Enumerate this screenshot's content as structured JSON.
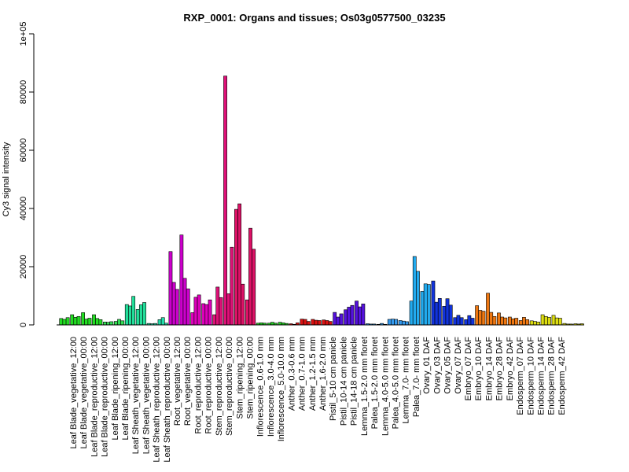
{
  "chart_data": {
    "type": "bar",
    "title": "RXP_0001: Organs and tissues; Os03g0577500_03235",
    "xlabel": "",
    "ylabel": "Cy3 signal intensity",
    "ylim": [
      0,
      100000
    ],
    "yticks": [
      0,
      20000,
      40000,
      60000,
      80000,
      100000
    ],
    "ytick_labels": [
      "0",
      "20000",
      "40000",
      "60000",
      "80000",
      "1e+05"
    ],
    "grid": false,
    "legend": "none",
    "categories": [
      "Leaf Blade_vegetative_12:00",
      "Leaf Blade_vegetative_00:00",
      "Leaf Blade_reproductive_12:00",
      "Leaf Blade_reproductive_00:00",
      "Leaf Blade_ripening_12:00",
      "Leaf Blade_ripening_00:00",
      "Leaf Sheath_vegetative_12:00",
      "Leaf Sheath_vegetative_00:00",
      "Leaf Sheath_reproductive_12:00",
      "Leaf Sheath_reproductive_00:00",
      "Root_vegetative_12:00",
      "Root_vegetative_00:00",
      "Root_reproductive_12:00",
      "Root_reproductive_00:00",
      "Stem_reproductive_12:00",
      "Stem_reproductive_00:00",
      "Stem_ripening_12:00",
      "Stem_ripening_00:00",
      "Inflorescence_0.6-1.0 mm",
      "Inflorescence_3.0-4.0 mm",
      "Inflorescence_5.0-10.0 mm",
      "Anther_0.3-0.6 mm",
      "Anther_0.7-1.0 mm",
      "Anther_1.2-1.5 mm",
      "Anther_1.6-2.0 mm",
      "Pistil_5-10 cm panicle",
      "Pistil_10-14 cm panicle",
      "Pistil_14-18 cm panicle",
      "Lemma_1.5-2.0 mm floret",
      "Palea_1.5-2.0 mm floret",
      "Lemma_4.0-5.0 mm floret",
      "Palea_4.0-5.0 mm floret",
      "Lemma_7.0- mm floret",
      "Palea_7.0- mm floret",
      "Ovary_01 DAF",
      "Ovary_03 DAF",
      "Ovary_05 DAF",
      "Ovary_07 DAF",
      "Embryo_07 DAF",
      "Embryo_10 DAF",
      "Embryo_14 DAF",
      "Embryo_28 DAF",
      "Embryo_42 DAF",
      "Endosperm_07 DAF",
      "Endosperm_10 DAF",
      "Endosperm_14 DAF",
      "Endosperm_28 DAF",
      "Endosperm_42 DAF"
    ],
    "groups": [
      {
        "color": "#22dd22",
        "values": [
          2200,
          1900,
          2500
        ]
      },
      {
        "color": "#22dd22",
        "values": [
          3500,
          2600,
          2900
        ]
      },
      {
        "color": "#22dd22",
        "values": [
          4200,
          2000,
          2300
        ]
      },
      {
        "color": "#22dd22",
        "values": [
          3500,
          2200,
          1800
        ]
      },
      {
        "color": "#33dd55",
        "values": [
          1000,
          900,
          1100
        ]
      },
      {
        "color": "#33dd55",
        "values": [
          1200,
          1900,
          1400
        ]
      },
      {
        "color": "#22dd99",
        "values": [
          7000,
          6500,
          9800
        ]
      },
      {
        "color": "#22dd99",
        "values": [
          5300,
          6900,
          7700
        ]
      },
      {
        "color": "#22ddaa",
        "values": [
          500,
          400,
          500
        ]
      },
      {
        "color": "#22ddaa",
        "values": [
          1800,
          2500,
          600
        ]
      },
      {
        "color": "#cc00cc",
        "values": [
          25200,
          14600,
          12200
        ]
      },
      {
        "color": "#cc00cc",
        "values": [
          30900,
          16000,
          12400
        ]
      },
      {
        "color": "#dd00bb",
        "values": [
          4200,
          9500,
          10300
        ]
      },
      {
        "color": "#dd00bb",
        "values": [
          7300,
          7000,
          8600
        ]
      },
      {
        "color": "#dd1177",
        "values": [
          3500,
          13000,
          9400
        ]
      },
      {
        "color": "#dd1177",
        "values": [
          85500,
          10700,
          26700
        ]
      },
      {
        "color": "#dd1166",
        "values": [
          39700,
          41600,
          14000
        ]
      },
      {
        "color": "#dd1166",
        "values": [
          8600,
          33200,
          26000
        ]
      },
      {
        "color": "#22cc22",
        "values": [
          600,
          700,
          600
        ]
      },
      {
        "color": "#22cc22",
        "values": [
          600,
          900,
          600
        ]
      },
      {
        "color": "#22cc22",
        "values": [
          900,
          700,
          500
        ]
      },
      {
        "color": "#dd1111",
        "values": [
          400,
          200,
          700
        ]
      },
      {
        "color": "#dd1111",
        "values": [
          2000,
          1900,
          1200
        ]
      },
      {
        "color": "#dd1111",
        "values": [
          1900,
          1600,
          1500
        ]
      },
      {
        "color": "#dd1111",
        "values": [
          1700,
          1500,
          1200
        ]
      },
      {
        "color": "#5511dd",
        "values": [
          4300,
          2700,
          3800
        ]
      },
      {
        "color": "#5511dd",
        "values": [
          5200,
          6100,
          6700
        ]
      },
      {
        "color": "#5511dd",
        "values": [
          8200,
          6200,
          7200
        ]
      },
      {
        "color": "#3399ee",
        "values": [
          400,
          300,
          300
        ]
      },
      {
        "color": "#3399ee",
        "values": [
          200,
          500,
          200
        ]
      },
      {
        "color": "#3399ee",
        "values": [
          1900,
          2000,
          1900
        ]
      },
      {
        "color": "#3399ee",
        "values": [
          1500,
          1300,
          1100
        ]
      },
      {
        "color": "#22aaee",
        "values": [
          8200,
          23500,
          18400
        ]
      },
      {
        "color": "#22aaee",
        "values": [
          11500,
          14100,
          13900
        ]
      },
      {
        "color": "#1133dd",
        "values": [
          15100,
          7800,
          9100
        ]
      },
      {
        "color": "#1133dd",
        "values": [
          6400,
          9000,
          6800
        ]
      },
      {
        "color": "#1133dd",
        "values": [
          2500,
          3300,
          2500
        ]
      },
      {
        "color": "#1133dd",
        "values": [
          1800,
          3200,
          2300
        ]
      },
      {
        "color": "#ee7711",
        "values": [
          6600,
          5000,
          4700
        ]
      },
      {
        "color": "#ee7711",
        "values": [
          10900,
          4300,
          2900
        ]
      },
      {
        "color": "#ee7711",
        "values": [
          4100,
          2700,
          2400
        ]
      },
      {
        "color": "#ee7711",
        "values": [
          2700,
          2100,
          2300
        ]
      },
      {
        "color": "#ee7711",
        "values": [
          1500,
          2600,
          1800
        ]
      },
      {
        "color": "#dddd11",
        "values": [
          1400,
          1200,
          1000
        ]
      },
      {
        "color": "#dddd11",
        "values": [
          3500,
          2900,
          2600
        ]
      },
      {
        "color": "#dddd11",
        "values": [
          3300,
          2400,
          2300
        ]
      },
      {
        "color": "#dddd11",
        "values": [
          500,
          300,
          300
        ]
      },
      {
        "color": "#dddd11",
        "values": [
          400,
          300,
          400
        ]
      }
    ]
  }
}
